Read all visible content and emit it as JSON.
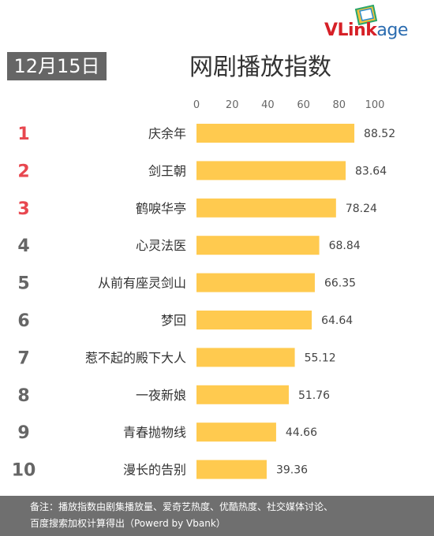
{
  "brand": {
    "logo_text": "VLinkage",
    "logo_v": "V",
    "logo_link": "Link",
    "logo_age": "age"
  },
  "date_label": "12月15日",
  "title": "网剧播放指数",
  "footer": {
    "line1": "备注：播放指数由剧集播放量、爱奇艺热度、优酷热度、社交媒体讨论、",
    "line2": "百度搜索加权计算得出（Powerd by Vbank）"
  },
  "colors": {
    "bar": "#ffca4f",
    "rank_top": "#e8474f",
    "rank_other": "#666666",
    "axis_text": "#666666",
    "gridline": "#dddddd"
  },
  "chart_data": {
    "type": "bar",
    "orientation": "horizontal",
    "categories": [
      "庆余年",
      "剑王朝",
      "鹤唳华亭",
      "心灵法医",
      "从前有座灵剑山",
      "梦回",
      "惹不起的殿下大人",
      "一夜新娘",
      "青春抛物线",
      "漫长的告别"
    ],
    "ranks": [
      "1",
      "2",
      "3",
      "4",
      "5",
      "6",
      "7",
      "8",
      "9",
      "10"
    ],
    "values": [
      88.52,
      83.64,
      78.24,
      68.84,
      66.35,
      64.64,
      55.12,
      51.76,
      44.66,
      39.36
    ],
    "value_labels": [
      "88.52",
      "83.64",
      "78.24",
      "68.84",
      "66.35",
      "64.64",
      "55.12",
      "51.76",
      "44.66",
      "39.36"
    ],
    "xlim": [
      0,
      100
    ],
    "xticks": [
      "0",
      "20",
      "40",
      "60",
      "80",
      "100"
    ],
    "xtick_values": [
      0,
      20,
      40,
      60,
      80,
      100
    ],
    "grid": false,
    "title": "网剧播放指数"
  }
}
